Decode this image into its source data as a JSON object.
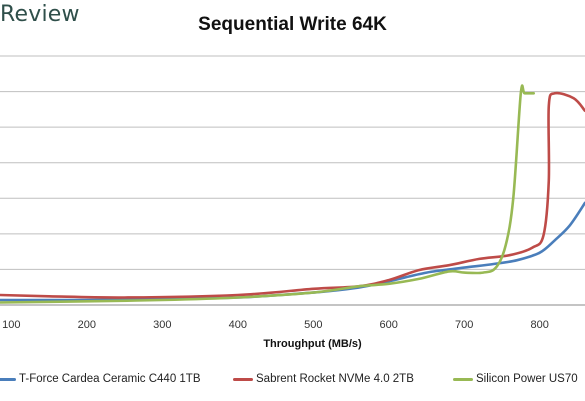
{
  "brand": "Review",
  "chart_data": {
    "type": "line",
    "title": "Sequential Write 64K",
    "xlabel": "Throughput (MB/s)",
    "ylabel": "",
    "xlim": [
      85,
      860
    ],
    "ylim": [
      0,
      10
    ],
    "x_ticks": [
      100,
      200,
      300,
      400,
      500,
      600,
      700,
      800
    ],
    "grid": "horizontal",
    "legend_position": "bottom",
    "series": [
      {
        "name": "T-Force Cardea Ceramic C440 1TB",
        "color": "#4a7ebb",
        "points": [
          [
            85,
            0.2
          ],
          [
            200,
            0.2
          ],
          [
            300,
            0.25
          ],
          [
            400,
            0.3
          ],
          [
            500,
            0.5
          ],
          [
            560,
            0.7
          ],
          [
            600,
            0.95
          ],
          [
            650,
            1.3
          ],
          [
            700,
            1.5
          ],
          [
            740,
            1.65
          ],
          [
            770,
            1.8
          ],
          [
            800,
            2.1
          ],
          [
            820,
            2.6
          ],
          [
            840,
            3.2
          ],
          [
            860,
            4.1
          ]
        ]
      },
      {
        "name": "Sabrent Rocket NVMe 4.0 2TB",
        "color": "#be4b48",
        "points": [
          [
            85,
            0.4
          ],
          [
            150,
            0.35
          ],
          [
            250,
            0.3
          ],
          [
            400,
            0.4
          ],
          [
            500,
            0.65
          ],
          [
            560,
            0.75
          ],
          [
            600,
            1.0
          ],
          [
            640,
            1.4
          ],
          [
            680,
            1.6
          ],
          [
            720,
            1.85
          ],
          [
            760,
            2.0
          ],
          [
            790,
            2.3
          ],
          [
            805,
            2.8
          ],
          [
            812,
            5.0
          ],
          [
            812,
            8.0
          ],
          [
            820,
            8.5
          ],
          [
            845,
            8.3
          ],
          [
            860,
            7.8
          ]
        ]
      },
      {
        "name": "Silicon Power US70",
        "color": "#98b954",
        "points": [
          [
            85,
            0.1
          ],
          [
            200,
            0.15
          ],
          [
            300,
            0.2
          ],
          [
            400,
            0.3
          ],
          [
            500,
            0.5
          ],
          [
            560,
            0.75
          ],
          [
            600,
            0.85
          ],
          [
            640,
            1.05
          ],
          [
            680,
            1.35
          ],
          [
            700,
            1.3
          ],
          [
            725,
            1.3
          ],
          [
            742,
            1.5
          ],
          [
            755,
            2.4
          ],
          [
            765,
            4.3
          ],
          [
            775,
            8.5
          ],
          [
            780,
            8.5
          ],
          [
            792,
            8.5
          ]
        ]
      }
    ]
  }
}
